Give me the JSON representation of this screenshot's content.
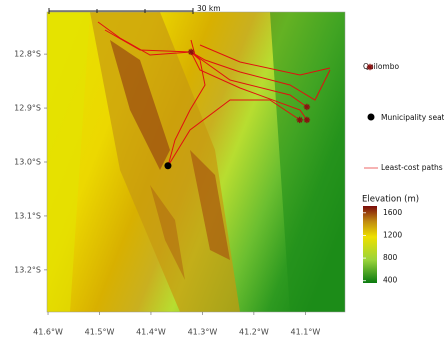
{
  "map": {
    "xlim": [
      -41.602,
      -41.023
    ],
    "ylim": [
      -13.278,
      -12.722
    ],
    "xticks": [
      {
        "value": -41.6,
        "label": "41.6°W"
      },
      {
        "value": -41.5,
        "label": "41.5°W"
      },
      {
        "value": -41.4,
        "label": "41.4°W"
      },
      {
        "value": -41.3,
        "label": "41.3°W"
      },
      {
        "value": -41.2,
        "label": "41.2°W"
      },
      {
        "value": -41.1,
        "label": "41.1°W"
      }
    ],
    "yticks": [
      {
        "value": -12.8,
        "label": "12.8°S"
      },
      {
        "value": -12.9,
        "label": "12.9°S"
      },
      {
        "value": -13.0,
        "label": "13.0°S"
      },
      {
        "value": -13.1,
        "label": "13.1°S"
      },
      {
        "value": -13.2,
        "label": "13.2°S"
      }
    ],
    "quilombos": [
      {
        "lon": -41.322,
        "lat": -12.796
      },
      {
        "lon": -41.097,
        "lat": -12.898
      },
      {
        "lon": -41.111,
        "lat": -12.922
      },
      {
        "lon": -41.097,
        "lat": -12.922
      }
    ],
    "seat": {
      "lon": -41.367,
      "lat": -13.007
    },
    "scale_label": "30 km"
  },
  "legend": {
    "quilombo": "Quilombo",
    "seat": "Municipality seat",
    "paths": "Least-cost paths",
    "elevation_title": "Elevation (m)",
    "clim": [
      360,
      1720
    ],
    "ticks": [
      400,
      800,
      1200,
      1600
    ]
  }
}
